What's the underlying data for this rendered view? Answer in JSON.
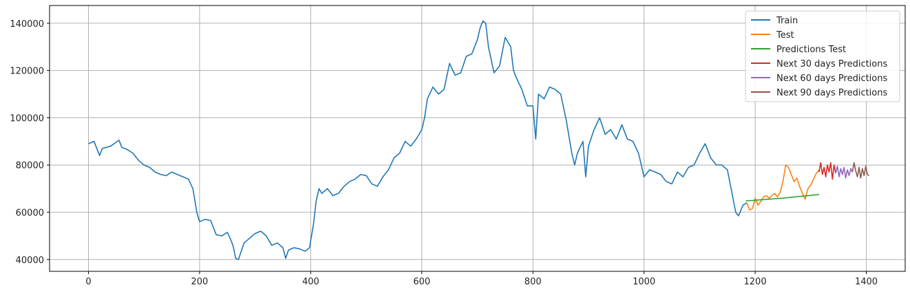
{
  "chart_data": {
    "type": "line",
    "title": "",
    "xlabel": "",
    "ylabel": "",
    "xlim": [
      -70,
      1470
    ],
    "ylim": [
      35000,
      147500
    ],
    "grid": true,
    "legend_position": "top-right",
    "x_ticks": [
      0,
      200,
      400,
      600,
      800,
      1000,
      1200,
      1400
    ],
    "y_ticks": [
      40000,
      60000,
      80000,
      100000,
      120000,
      140000
    ],
    "x_tick_labels": [
      "0",
      "200",
      "400",
      "600",
      "800",
      "1000",
      "1200",
      "1400"
    ],
    "y_tick_labels": [
      "40000",
      "60000",
      "80000",
      "100000",
      "120000",
      "140000"
    ],
    "series": [
      {
        "name": "Train",
        "color": "#1f77b4",
        "points": [
          [
            0,
            89000
          ],
          [
            10,
            90000
          ],
          [
            20,
            84000
          ],
          [
            25,
            87000
          ],
          [
            40,
            88000
          ],
          [
            55,
            90500
          ],
          [
            60,
            87500
          ],
          [
            70,
            86500
          ],
          [
            80,
            85000
          ],
          [
            90,
            82000
          ],
          [
            100,
            80000
          ],
          [
            110,
            79000
          ],
          [
            120,
            77000
          ],
          [
            130,
            76000
          ],
          [
            140,
            75500
          ],
          [
            150,
            77000
          ],
          [
            160,
            76000
          ],
          [
            170,
            75000
          ],
          [
            180,
            74000
          ],
          [
            188,
            70000
          ],
          [
            195,
            60000
          ],
          [
            200,
            56000
          ],
          [
            210,
            57000
          ],
          [
            220,
            56500
          ],
          [
            230,
            50500
          ],
          [
            240,
            50000
          ],
          [
            250,
            51500
          ],
          [
            255,
            49000
          ],
          [
            260,
            46000
          ],
          [
            265,
            40500
          ],
          [
            270,
            40000
          ],
          [
            280,
            47000
          ],
          [
            290,
            49000
          ],
          [
            300,
            51000
          ],
          [
            310,
            52000
          ],
          [
            320,
            50000
          ],
          [
            330,
            46000
          ],
          [
            340,
            47000
          ],
          [
            350,
            45000
          ],
          [
            355,
            40500
          ],
          [
            360,
            44000
          ],
          [
            370,
            45000
          ],
          [
            380,
            44500
          ],
          [
            390,
            43500
          ],
          [
            398,
            45000
          ],
          [
            405,
            55000
          ],
          [
            410,
            65000
          ],
          [
            415,
            70000
          ],
          [
            420,
            68000
          ],
          [
            430,
            70000
          ],
          [
            440,
            67000
          ],
          [
            450,
            68000
          ],
          [
            460,
            71000
          ],
          [
            470,
            73000
          ],
          [
            480,
            74000
          ],
          [
            490,
            76000
          ],
          [
            500,
            75500
          ],
          [
            510,
            72000
          ],
          [
            520,
            71000
          ],
          [
            530,
            75000
          ],
          [
            540,
            78000
          ],
          [
            550,
            83000
          ],
          [
            560,
            85000
          ],
          [
            570,
            90000
          ],
          [
            580,
            88000
          ],
          [
            590,
            91000
          ],
          [
            600,
            95000
          ],
          [
            605,
            100000
          ],
          [
            610,
            108000
          ],
          [
            620,
            113000
          ],
          [
            630,
            110000
          ],
          [
            640,
            112000
          ],
          [
            650,
            123000
          ],
          [
            660,
            118000
          ],
          [
            670,
            119000
          ],
          [
            680,
            126000
          ],
          [
            690,
            127000
          ],
          [
            700,
            133000
          ],
          [
            705,
            138000
          ],
          [
            710,
            141000
          ],
          [
            715,
            140000
          ],
          [
            720,
            130000
          ],
          [
            730,
            119000
          ],
          [
            740,
            122000
          ],
          [
            750,
            134000
          ],
          [
            760,
            130000
          ],
          [
            765,
            120000
          ],
          [
            770,
            117000
          ],
          [
            780,
            112000
          ],
          [
            790,
            105000
          ],
          [
            800,
            105000
          ],
          [
            805,
            91000
          ],
          [
            810,
            110000
          ],
          [
            820,
            108000
          ],
          [
            830,
            113000
          ],
          [
            840,
            112000
          ],
          [
            850,
            110000
          ],
          [
            860,
            99000
          ],
          [
            870,
            85000
          ],
          [
            875,
            80000
          ],
          [
            880,
            85000
          ],
          [
            890,
            90000
          ],
          [
            895,
            75000
          ],
          [
            900,
            88000
          ],
          [
            910,
            95000
          ],
          [
            920,
            100000
          ],
          [
            930,
            93000
          ],
          [
            940,
            95000
          ],
          [
            950,
            91000
          ],
          [
            960,
            97000
          ],
          [
            970,
            91000
          ],
          [
            980,
            90000
          ],
          [
            990,
            85000
          ],
          [
            1000,
            75000
          ],
          [
            1010,
            78000
          ],
          [
            1020,
            77000
          ],
          [
            1030,
            76000
          ],
          [
            1040,
            73000
          ],
          [
            1050,
            72000
          ],
          [
            1060,
            77000
          ],
          [
            1070,
            75000
          ],
          [
            1080,
            79000
          ],
          [
            1090,
            80000
          ],
          [
            1100,
            85000
          ],
          [
            1110,
            89000
          ],
          [
            1120,
            83000
          ],
          [
            1130,
            80000
          ],
          [
            1140,
            80000
          ],
          [
            1150,
            78000
          ],
          [
            1160,
            66000
          ],
          [
            1165,
            60000
          ],
          [
            1170,
            58500
          ],
          [
            1178,
            63000
          ],
          [
            1185,
            64000
          ]
        ]
      },
      {
        "name": "Test",
        "color": "#ff7f0e",
        "points": [
          [
            1185,
            64000
          ],
          [
            1190,
            61000
          ],
          [
            1195,
            61500
          ],
          [
            1200,
            66000
          ],
          [
            1205,
            63000
          ],
          [
            1210,
            64500
          ],
          [
            1215,
            66500
          ],
          [
            1220,
            67000
          ],
          [
            1225,
            66000
          ],
          [
            1230,
            67000
          ],
          [
            1235,
            68000
          ],
          [
            1240,
            66500
          ],
          [
            1245,
            68500
          ],
          [
            1250,
            73000
          ],
          [
            1255,
            80000
          ],
          [
            1260,
            79000
          ],
          [
            1265,
            76000
          ],
          [
            1270,
            73000
          ],
          [
            1275,
            74500
          ],
          [
            1280,
            71000
          ],
          [
            1285,
            68000
          ],
          [
            1290,
            65500
          ],
          [
            1295,
            70000
          ],
          [
            1300,
            71500
          ],
          [
            1305,
            74000
          ],
          [
            1310,
            76500
          ],
          [
            1315,
            78000
          ]
        ]
      },
      {
        "name": "Predictions Test",
        "color": "#2ca02c",
        "points": [
          [
            1183,
            64800
          ],
          [
            1250,
            66000
          ],
          [
            1315,
            67500
          ]
        ]
      },
      {
        "name": "Next 30 days Predictions",
        "color": "#d62728",
        "points": [
          [
            1315,
            77000
          ],
          [
            1318,
            81000
          ],
          [
            1321,
            76000
          ],
          [
            1324,
            79000
          ],
          [
            1327,
            75000
          ],
          [
            1330,
            80000
          ],
          [
            1333,
            77000
          ],
          [
            1336,
            81000
          ],
          [
            1339,
            74000
          ],
          [
            1342,
            80000
          ],
          [
            1345,
            76500
          ]
        ]
      },
      {
        "name": "Next 60 days Predictions",
        "color": "#9467bd",
        "points": [
          [
            1345,
            76500
          ],
          [
            1348,
            79500
          ],
          [
            1351,
            75000
          ],
          [
            1354,
            78500
          ],
          [
            1357,
            76000
          ],
          [
            1360,
            79000
          ],
          [
            1363,
            74500
          ],
          [
            1366,
            78000
          ],
          [
            1369,
            75500
          ],
          [
            1372,
            78500
          ],
          [
            1375,
            77000
          ]
        ]
      },
      {
        "name": "Next 90 days Predictions",
        "color": "#8c564b",
        "points": [
          [
            1375,
            77000
          ],
          [
            1378,
            81000
          ],
          [
            1381,
            77500
          ],
          [
            1384,
            75000
          ],
          [
            1387,
            79000
          ],
          [
            1390,
            74500
          ],
          [
            1393,
            78500
          ],
          [
            1396,
            75500
          ],
          [
            1399,
            79500
          ],
          [
            1402,
            76000
          ],
          [
            1405,
            75500
          ]
        ]
      }
    ]
  }
}
